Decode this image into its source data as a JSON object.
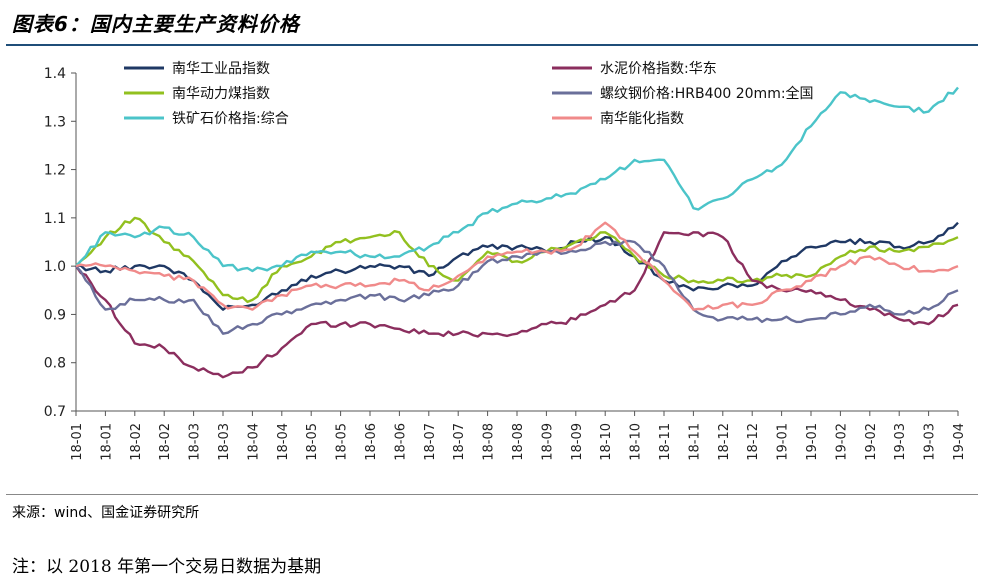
{
  "header": {
    "title": "图表6：国内主要生产资料价格"
  },
  "footer": {
    "source": "来源：wind、国金证券研究所",
    "note": "注：以 2018 年第一个交易日数据为基期"
  },
  "chart_data": {
    "type": "line",
    "title": "",
    "xlabel": "",
    "ylabel": "",
    "ylim": [
      0.7,
      1.4
    ],
    "yticks": [
      "0.7",
      "0.8",
      "0.9",
      "1.0",
      "1.1",
      "1.2",
      "1.3",
      "1.4"
    ],
    "x": [
      "18-01",
      "18-01",
      "18-02",
      "18-02",
      "18-03",
      "18-03",
      "18-04",
      "18-04",
      "18-05",
      "18-05",
      "18-06",
      "18-06",
      "18-07",
      "18-07",
      "18-08",
      "18-08",
      "18-09",
      "18-09",
      "18-10",
      "18-10",
      "18-11",
      "18-11",
      "18-12",
      "18-12",
      "19-01",
      "19-01",
      "19-02",
      "19-02",
      "19-03",
      "19-03",
      "19-04"
    ],
    "legend_position": "top",
    "grid": false,
    "series": [
      {
        "name": "南华工业品指数",
        "color": "#1f3864",
        "values": [
          1.0,
          0.99,
          1.0,
          1.0,
          0.97,
          0.91,
          0.92,
          0.95,
          0.98,
          0.99,
          1.0,
          1.0,
          0.98,
          1.02,
          1.04,
          1.04,
          1.03,
          1.05,
          1.06,
          1.02,
          0.97,
          0.95,
          0.96,
          0.96,
          1.01,
          1.04,
          1.05,
          1.05,
          1.04,
          1.05,
          1.09
        ]
      },
      {
        "name": "南华动力煤指数",
        "color": "#92c01f",
        "values": [
          1.0,
          1.06,
          1.1,
          1.05,
          1.01,
          0.94,
          0.93,
          1.0,
          1.02,
          1.05,
          1.06,
          1.07,
          1.0,
          0.97,
          1.03,
          1.01,
          1.03,
          1.05,
          1.07,
          1.02,
          0.98,
          0.97,
          0.97,
          0.97,
          0.98,
          0.98,
          1.02,
          1.04,
          1.03,
          1.04,
          1.06
        ]
      },
      {
        "name": "铁矿石价格指:综合",
        "color": "#4bc4c9",
        "values": [
          1.0,
          1.07,
          1.06,
          1.08,
          1.06,
          1.0,
          0.99,
          1.0,
          1.03,
          1.03,
          1.02,
          1.02,
          1.04,
          1.07,
          1.11,
          1.13,
          1.14,
          1.15,
          1.18,
          1.22,
          1.22,
          1.12,
          1.14,
          1.18,
          1.21,
          1.29,
          1.36,
          1.34,
          1.33,
          1.32,
          1.37
        ]
      },
      {
        "name": "水泥价格指数:华东",
        "color": "#8b2e5e",
        "values": [
          1.0,
          0.93,
          0.84,
          0.83,
          0.79,
          0.77,
          0.79,
          0.83,
          0.88,
          0.88,
          0.88,
          0.87,
          0.86,
          0.86,
          0.86,
          0.86,
          0.88,
          0.89,
          0.92,
          0.95,
          1.07,
          1.07,
          1.06,
          0.97,
          0.95,
          0.95,
          0.93,
          0.91,
          0.89,
          0.88,
          0.92
        ]
      },
      {
        "name": "螺纹钢价格:HRB400 20mm:全国",
        "color": "#6a6f9a",
        "values": [
          1.0,
          0.91,
          0.93,
          0.93,
          0.93,
          0.86,
          0.88,
          0.9,
          0.92,
          0.93,
          0.94,
          0.93,
          0.94,
          0.96,
          1.01,
          1.02,
          1.03,
          1.03,
          1.05,
          1.05,
          1.0,
          0.91,
          0.89,
          0.89,
          0.89,
          0.89,
          0.9,
          0.92,
          0.9,
          0.91,
          0.95
        ]
      },
      {
        "name": "南华能化指数",
        "color": "#f08a8a",
        "values": [
          1.0,
          1.0,
          0.99,
          0.98,
          0.97,
          0.92,
          0.91,
          0.94,
          0.96,
          0.96,
          0.96,
          0.97,
          0.95,
          0.98,
          1.02,
          1.03,
          1.03,
          1.04,
          1.09,
          1.03,
          0.97,
          0.91,
          0.92,
          0.92,
          0.95,
          0.97,
          1.0,
          1.02,
          1.0,
          0.99,
          1.0
        ]
      }
    ]
  }
}
